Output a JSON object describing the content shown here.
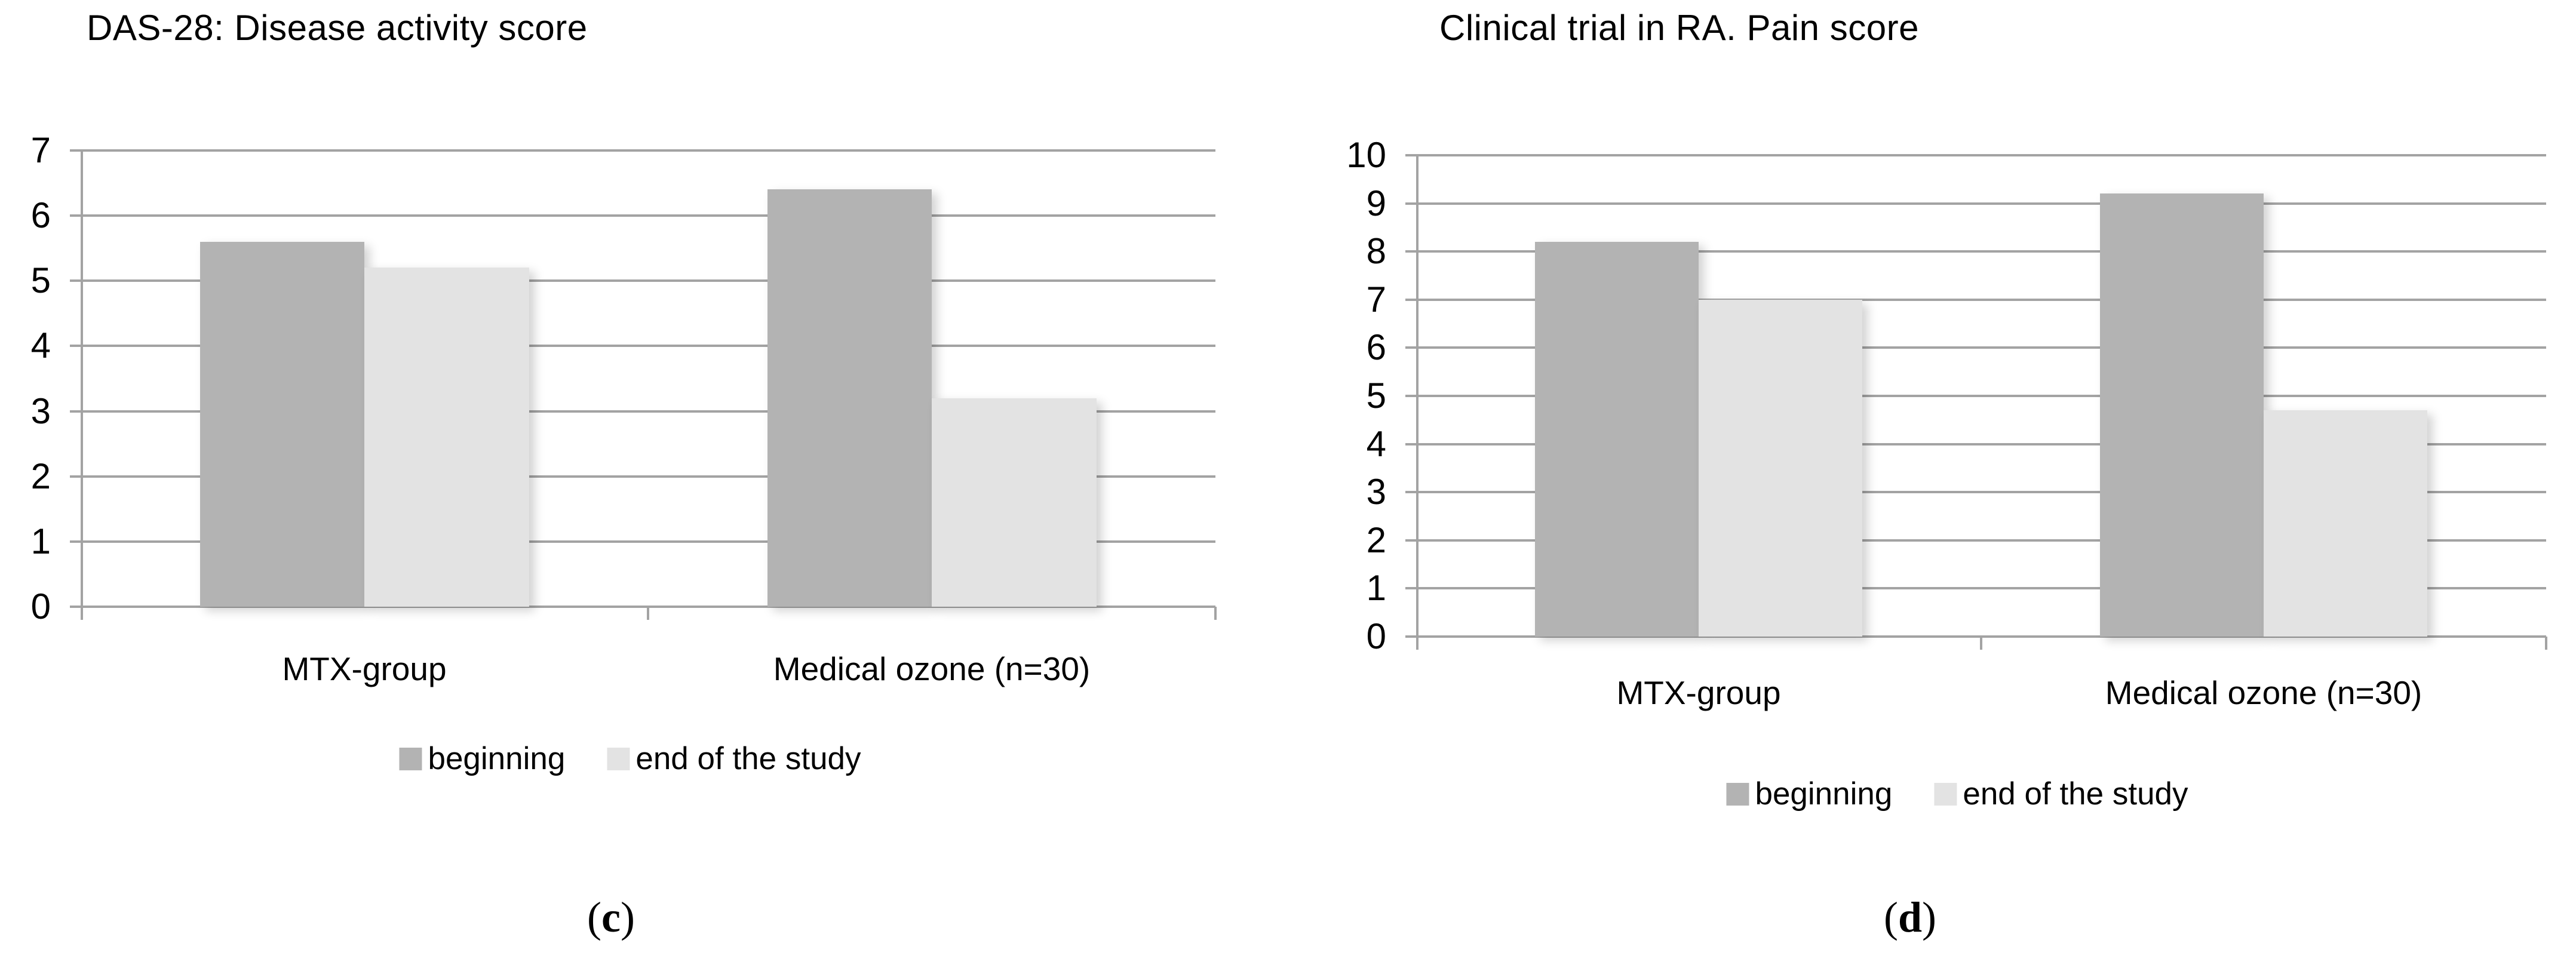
{
  "page": {
    "background": "#ffffff",
    "gridline_color": "#a3a3a3",
    "axis_color": "#a3a3a3"
  },
  "chart_data": [
    {
      "type": "bar",
      "title": "DAS-28: Disease activity score",
      "categories": [
        "MTX-group",
        "Medical ozone (n=30)"
      ],
      "series": [
        {
          "name": "beginning",
          "color": "#b3b3b3",
          "values": [
            5.6,
            6.4
          ]
        },
        {
          "name": "end of the study",
          "color": "#e3e3e3",
          "values": [
            5.2,
            3.2
          ]
        }
      ],
      "ylim": [
        0,
        7
      ],
      "yticks": [
        0,
        1,
        2,
        3,
        4,
        5,
        6,
        7
      ],
      "grid": true,
      "legend_position": "bottom",
      "caption": {
        "open": "(",
        "letter": "c",
        "close": ")"
      }
    },
    {
      "type": "bar",
      "title": "Clinical trial in RA. Pain score",
      "categories": [
        "MTX-group",
        "Medical ozone (n=30)"
      ],
      "series": [
        {
          "name": "beginning",
          "color": "#b3b3b3",
          "values": [
            8.2,
            9.2
          ]
        },
        {
          "name": "end of the study",
          "color": "#e3e3e3",
          "values": [
            7.0,
            4.7
          ]
        }
      ],
      "ylim": [
        0,
        10
      ],
      "yticks": [
        0,
        1,
        2,
        3,
        4,
        5,
        6,
        7,
        8,
        9,
        10
      ],
      "grid": true,
      "legend_position": "bottom",
      "caption": {
        "open": "(",
        "letter": "d",
        "close": ")"
      }
    }
  ]
}
